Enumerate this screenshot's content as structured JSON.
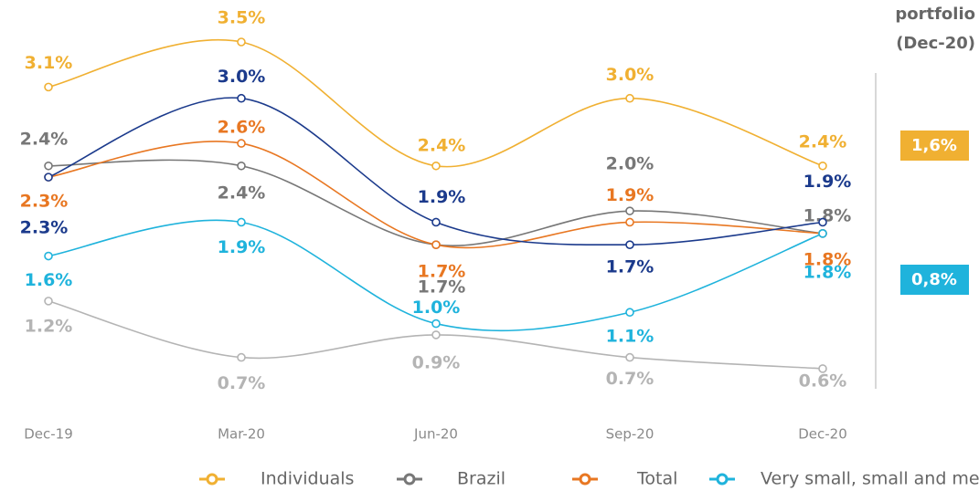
{
  "chart_data": {
    "type": "line",
    "categories": [
      "Dec-19",
      "Mar-20",
      "Jun-20",
      "Sep-20",
      "Dec-20"
    ],
    "ylim": [
      0,
      3.5
    ],
    "series": [
      {
        "name": "Individuals",
        "color": "#f0b032",
        "values": [
          3.1,
          3.5,
          2.4,
          3.0,
          2.4
        ],
        "value_labels": [
          "3.1%",
          "3.5%",
          "2.4%",
          "3.0%",
          "2.4%"
        ]
      },
      {
        "name": "Brazil",
        "color": "#777777",
        "values": [
          2.4,
          2.4,
          1.7,
          2.0,
          1.8
        ],
        "value_labels": [
          "2.4%",
          "2.4%",
          "1.7%",
          "2.0%",
          "1.8%"
        ]
      },
      {
        "name": "Total",
        "color": "#e87722",
        "values": [
          2.3,
          2.6,
          1.7,
          1.9,
          1.8
        ],
        "value_labels": [
          "2.3%",
          "2.6%",
          "1.7%",
          "1.9%",
          "1.8%"
        ]
      },
      {
        "name": "Very small, small and medium",
        "color": "#1fb3dc",
        "values": [
          1.6,
          1.9,
          1.0,
          1.1,
          1.8
        ],
        "value_labels": [
          "1.6%",
          "1.9%",
          "1.0%",
          "1.1%",
          "1.8%"
        ]
      },
      {
        "color": "#1b3a8c",
        "values": [
          2.3,
          3.0,
          1.9,
          1.7,
          1.9
        ],
        "value_labels": [
          "2.3%",
          "3.0%",
          "1.9%",
          "1.7%",
          "1.9%"
        ]
      },
      {
        "color": "#b4b4b4",
        "values": [
          1.2,
          0.7,
          0.9,
          0.7,
          0.6
        ],
        "value_labels": [
          "1.2%",
          "0.7%",
          "0.9%",
          "0.7%",
          "0.6%"
        ]
      }
    ],
    "side_panel": {
      "title_lines": [
        "portfolio",
        "(Dec-20)"
      ],
      "boxes": [
        {
          "label": "1,6%",
          "color": "#f0b032"
        },
        {
          "label": "0,8%",
          "color": "#1fb3dc"
        }
      ]
    }
  }
}
